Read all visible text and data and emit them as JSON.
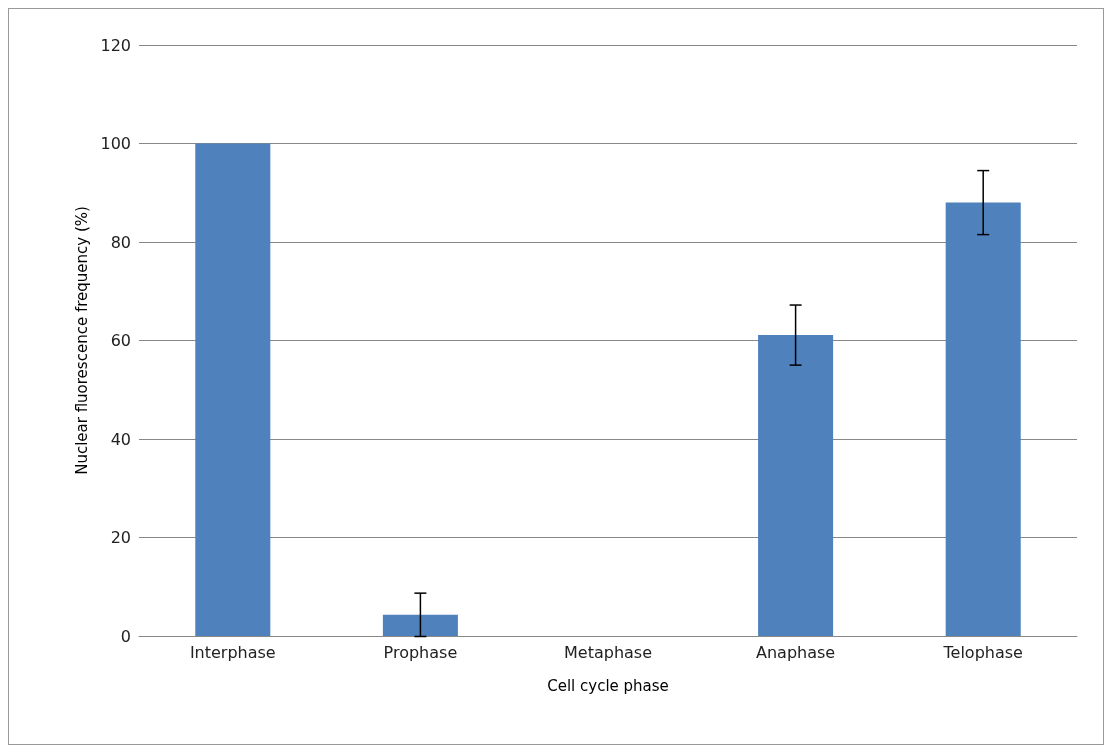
{
  "chart_data": {
    "type": "bar",
    "xlabel": "Cell cycle phase",
    "ylabel": "Nuclear fluorescence frequency (%)",
    "categories": [
      "Interphase",
      "Prophase",
      "Metaphase",
      "Anaphase",
      "Telophase"
    ],
    "values": [
      100,
      4.3,
      0,
      61.1,
      88
    ],
    "errors": [
      null,
      4.4,
      null,
      6.1,
      6.5
    ],
    "color": "#4f81bd",
    "ylim": [
      0,
      120
    ],
    "yticks": [
      0,
      20,
      40,
      60,
      80,
      100,
      120
    ],
    "grid": "y"
  }
}
